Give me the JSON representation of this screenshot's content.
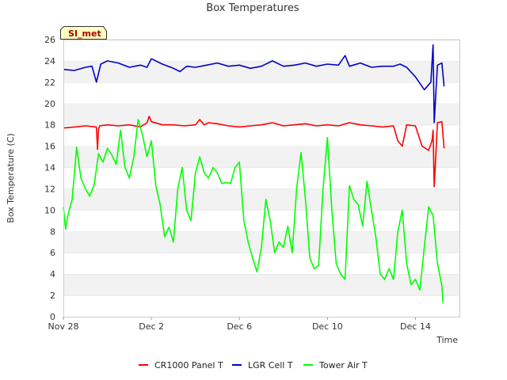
{
  "chart_data": {
    "type": "line",
    "title": "Box Temperatures",
    "xlabel": "Time",
    "ylabel": "Box Temperature (C)",
    "badge": "SI_met",
    "x_unit": "days",
    "xlim": [
      0,
      18
    ],
    "ylim": [
      0,
      26
    ],
    "y_ticks": [
      0,
      2,
      4,
      6,
      8,
      10,
      12,
      14,
      16,
      18,
      20,
      22,
      24,
      26
    ],
    "x_ticks": [
      {
        "value": 0,
        "label": "Nov 28"
      },
      {
        "value": 4,
        "label": "Dec 2"
      },
      {
        "value": 8,
        "label": "Dec 6"
      },
      {
        "value": 12,
        "label": "Dec 10"
      },
      {
        "value": 16,
        "label": "Dec 14"
      }
    ],
    "grid": "horizontal bands",
    "legend_position": "bottom",
    "series": [
      {
        "name": "CR1000 Panel T",
        "color": "#ff0000",
        "x": [
          0,
          0.5,
          1,
          1.5,
          1.55,
          1.6,
          1.65,
          2,
          2.5,
          3,
          3.5,
          3.8,
          3.9,
          4,
          4.5,
          5,
          5.5,
          6,
          6.2,
          6.4,
          6.6,
          7,
          7.5,
          8,
          8.5,
          9,
          9.5,
          10,
          10.5,
          11,
          11.5,
          12,
          12.5,
          13,
          13.5,
          14,
          14.5,
          15,
          15.2,
          15.4,
          15.6,
          16,
          16.3,
          16.6,
          16.75,
          16.8,
          16.85,
          17,
          17.2,
          17.3
        ],
        "values": [
          17.7,
          17.8,
          17.9,
          17.8,
          15.7,
          17.6,
          17.9,
          18.0,
          17.9,
          18.0,
          17.8,
          18.2,
          18.8,
          18.3,
          18.0,
          18.0,
          17.9,
          18.0,
          18.5,
          18.0,
          18.2,
          18.1,
          17.9,
          17.8,
          17.9,
          18.0,
          18.2,
          17.9,
          18.0,
          18.1,
          17.9,
          18.0,
          17.9,
          18.2,
          18.0,
          17.9,
          17.8,
          17.9,
          16.5,
          16.0,
          18.0,
          17.9,
          16.0,
          15.6,
          16.5,
          17.5,
          12.2,
          18.2,
          18.3,
          15.8
        ]
      },
      {
        "name": "LGR Cell T",
        "color": "#0000cc",
        "x": [
          0,
          0.5,
          1,
          1.3,
          1.5,
          1.7,
          2,
          2.5,
          3,
          3.5,
          3.8,
          4,
          4.5,
          5,
          5.3,
          5.6,
          6,
          6.5,
          7,
          7.5,
          8,
          8.5,
          9,
          9.5,
          10,
          10.5,
          11,
          11.5,
          12,
          12.5,
          12.8,
          13,
          13.5,
          14,
          14.5,
          15,
          15.3,
          15.6,
          16,
          16.4,
          16.7,
          16.8,
          16.85,
          17,
          17.2,
          17.3
        ],
        "values": [
          23.2,
          23.1,
          23.4,
          23.5,
          22.0,
          23.7,
          24.0,
          23.8,
          23.4,
          23.6,
          23.4,
          24.2,
          23.7,
          23.3,
          23.0,
          23.5,
          23.4,
          23.6,
          23.8,
          23.5,
          23.6,
          23.3,
          23.5,
          24.0,
          23.5,
          23.6,
          23.8,
          23.5,
          23.7,
          23.6,
          24.5,
          23.5,
          23.8,
          23.4,
          23.5,
          23.5,
          23.7,
          23.4,
          22.5,
          21.3,
          22.0,
          25.5,
          18.2,
          23.6,
          23.8,
          21.6
        ]
      },
      {
        "name": "Tower Air T",
        "color": "#00ff00",
        "x": [
          0,
          0.1,
          0.2,
          0.4,
          0.6,
          0.8,
          1.0,
          1.2,
          1.4,
          1.6,
          1.8,
          2.0,
          2.2,
          2.4,
          2.6,
          2.8,
          3.0,
          3.2,
          3.4,
          3.6,
          3.8,
          4.0,
          4.2,
          4.4,
          4.6,
          4.8,
          5.0,
          5.2,
          5.4,
          5.6,
          5.8,
          6.0,
          6.2,
          6.4,
          6.6,
          6.8,
          7.0,
          7.2,
          7.4,
          7.6,
          7.8,
          8.0,
          8.2,
          8.4,
          8.6,
          8.8,
          9.0,
          9.2,
          9.4,
          9.6,
          9.8,
          10.0,
          10.2,
          10.4,
          10.6,
          10.8,
          11.0,
          11.2,
          11.4,
          11.6,
          11.8,
          12.0,
          12.2,
          12.4,
          12.6,
          12.8,
          13.0,
          13.2,
          13.4,
          13.6,
          13.8,
          14.0,
          14.2,
          14.4,
          14.6,
          14.8,
          15.0,
          15.2,
          15.4,
          15.6,
          15.8,
          16.0,
          16.2,
          16.4,
          16.6,
          16.8,
          17.0,
          17.2,
          17.25
        ],
        "values": [
          10.3,
          8.2,
          9.5,
          11.0,
          15.9,
          13.0,
          12.0,
          11.3,
          12.4,
          15.3,
          14.5,
          15.8,
          15.2,
          14.3,
          17.5,
          14.0,
          13.0,
          15.0,
          18.5,
          17.0,
          15.0,
          16.5,
          12.3,
          10.5,
          7.5,
          8.4,
          7.0,
          12.0,
          14.0,
          10.0,
          9.0,
          13.5,
          15.0,
          13.5,
          13.0,
          14.0,
          13.5,
          12.5,
          12.6,
          12.5,
          14.0,
          14.5,
          9.0,
          7.0,
          5.5,
          4.2,
          6.5,
          11.0,
          9.0,
          6.0,
          7.0,
          6.5,
          8.5,
          6.0,
          12.0,
          15.4,
          11.0,
          5.5,
          4.5,
          4.8,
          12.0,
          16.8,
          10.0,
          5.0,
          4.0,
          3.5,
          12.3,
          11.0,
          10.5,
          8.5,
          12.7,
          10.0,
          7.5,
          4.0,
          3.5,
          4.5,
          3.5,
          8.0,
          10.0,
          5.0,
          3.0,
          3.5,
          2.5,
          6.5,
          10.3,
          9.5,
          5.0,
          2.9,
          1.3
        ]
      }
    ]
  }
}
